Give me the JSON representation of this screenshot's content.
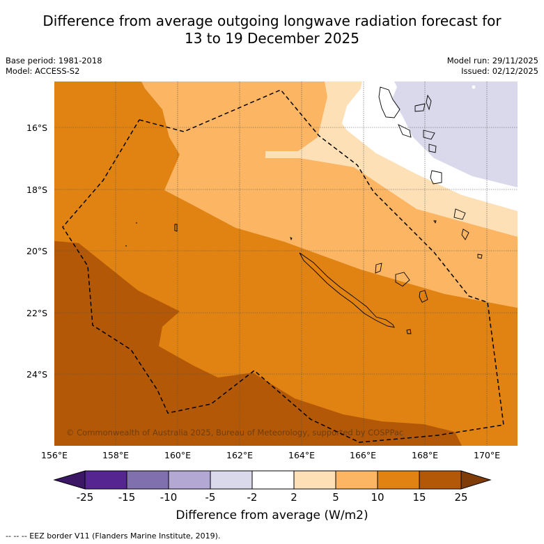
{
  "title_line1": "Difference from average outgoing longwave radiation forecast for",
  "title_line2": "13 to 19 December 2025",
  "base_period": "Base period: 1981-2018",
  "model": "Model: ACCESS-S2",
  "model_run": "Model run: 29/11/2025",
  "issued": "Issued: 02/12/2025",
  "latitude_labels": [
    "16°S",
    "18°S",
    "20°S",
    "22°S",
    "24°S"
  ],
  "longitude_labels": [
    "156°E",
    "158°E",
    "160°E",
    "162°E",
    "164°E",
    "166°E",
    "168°E",
    "170°E"
  ],
  "copyright": "© Commonwealth of Australia 2025, Bureau of Meteorology, supported by COSPPac",
  "colorbar": {
    "title": "Difference from average (W/m2)",
    "tick_labels": [
      "-25",
      "-15",
      "-10",
      "-5",
      "-2",
      "2",
      "5",
      "10",
      "15",
      "25"
    ],
    "colors": [
      "#3b1766",
      "#55268f",
      "#8070ad",
      "#b2a8d3",
      "#d9d9eb",
      "#ffffff",
      "#fee0b6",
      "#fbb563",
      "#e08312",
      "#b35806",
      "#7f3b08"
    ]
  },
  "footer": "--  --  -- EEZ border V11 (Flanders Marine Institute, 2019).",
  "chart_data": {
    "type": "map",
    "variable": "Difference from average outgoing longwave radiation",
    "units": "W/m2",
    "lon_range": [
      156,
      171
    ],
    "lat_range": [
      -26.3,
      -14.5
    ],
    "levels": [
      -25,
      -15,
      -10,
      -5,
      -2,
      2,
      5,
      10,
      15,
      25
    ],
    "regions": [
      {
        "range": "15 to 25",
        "location": "southwest and south"
      },
      {
        "range": "10 to 15",
        "location": "central, covering New Caledonia"
      },
      {
        "range": "5 to 10",
        "location": "northern band"
      },
      {
        "range": "2 to 5",
        "location": "northeast band"
      },
      {
        "range": "-2 to 2",
        "location": "far northeast"
      },
      {
        "range": "-5 to -2",
        "location": "northeast corner near Vanuatu"
      }
    ],
    "overlays": [
      "coastlines",
      "EEZ border (dashed)"
    ]
  }
}
